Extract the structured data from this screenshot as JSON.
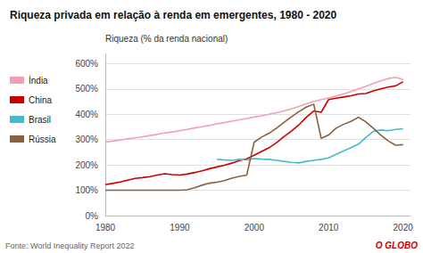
{
  "chart_data": {
    "type": "line",
    "title": "Riqueza privada em relação à renda em emergentes, 1980 - 2020",
    "ylabel": "Riqueza (% da renda nacional)",
    "annotations": [
      "Fonte: World Inequality Report 2022",
      "O GLOBO"
    ],
    "xlim": [
      1980,
      2021
    ],
    "xticks": [
      1980,
      1990,
      2000,
      2010,
      2020
    ],
    "ylim": [
      0,
      640
    ],
    "yticks": [
      {
        "value": 0,
        "label": "0%"
      },
      {
        "value": 100,
        "label": "100%"
      },
      {
        "value": 200,
        "label": "200%"
      },
      {
        "value": 300,
        "label": "300%"
      },
      {
        "value": 400,
        "label": "400%"
      },
      {
        "value": 500,
        "label": "500%"
      },
      {
        "value": 600,
        "label": "600%"
      }
    ],
    "grid": true,
    "legend": "left",
    "series": [
      {
        "name": "Índia",
        "color": "#f0a0b0",
        "x": [
          1980,
          1981,
          1982,
          1983,
          1984,
          1985,
          1986,
          1987,
          1988,
          1989,
          1990,
          1991,
          1992,
          1993,
          1994,
          1995,
          1996,
          1997,
          1998,
          1999,
          2000,
          2001,
          2002,
          2003,
          2004,
          2005,
          2006,
          2007,
          2008,
          2009,
          2010,
          2011,
          2012,
          2013,
          2014,
          2015,
          2016,
          2017,
          2018,
          2019,
          2020
        ],
        "values": [
          290,
          294,
          298,
          303,
          307,
          311,
          316,
          321,
          326,
          330,
          335,
          340,
          346,
          351,
          356,
          362,
          367,
          373,
          378,
          383,
          389,
          394,
          400,
          406,
          413,
          421,
          431,
          441,
          450,
          458,
          464,
          472,
          480,
          490,
          500,
          510,
          521,
          532,
          541,
          546,
          537
        ]
      },
      {
        "name": "China",
        "color": "#cc0000",
        "x": [
          1980,
          1981,
          1982,
          1983,
          1984,
          1985,
          1986,
          1987,
          1988,
          1989,
          1990,
          1991,
          1992,
          1993,
          1994,
          1995,
          1996,
          1997,
          1998,
          1999,
          2000,
          2001,
          2002,
          2003,
          2004,
          2005,
          2006,
          2007,
          2008,
          2009,
          2010,
          2011,
          2012,
          2013,
          2014,
          2015,
          2016,
          2017,
          2018,
          2019,
          2020
        ],
        "values": [
          122,
          127,
          133,
          140,
          147,
          150,
          154,
          160,
          165,
          162,
          160,
          164,
          170,
          177,
          185,
          192,
          199,
          207,
          217,
          224,
          238,
          253,
          268,
          288,
          312,
          334,
          358,
          388,
          413,
          408,
          458,
          463,
          468,
          473,
          480,
          482,
          492,
          500,
          507,
          512,
          528
        ]
      },
      {
        "name": "Brasil",
        "color": "#44bbcc",
        "x": [
          1995,
          1996,
          1997,
          1998,
          1999,
          2000,
          2001,
          2002,
          2003,
          2004,
          2005,
          2006,
          2007,
          2008,
          2009,
          2010,
          2011,
          2012,
          2013,
          2014,
          2015,
          2016,
          2017,
          2018,
          2019,
          2020
        ],
        "values": [
          222,
          220,
          218,
          222,
          220,
          225,
          223,
          222,
          218,
          214,
          210,
          208,
          214,
          218,
          222,
          228,
          242,
          255,
          268,
          282,
          308,
          332,
          338,
          335,
          340,
          343
        ]
      },
      {
        "name": "Rússia",
        "color": "#8b6040",
        "x": [
          1980,
          1981,
          1982,
          1983,
          1984,
          1985,
          1986,
          1987,
          1988,
          1989,
          1990,
          1991,
          1992,
          1993,
          1994,
          1995,
          1996,
          1997,
          1998,
          1999,
          2000,
          2001,
          2002,
          2003,
          2004,
          2005,
          2006,
          2007,
          2008,
          2009,
          2010,
          2011,
          2012,
          2013,
          2014,
          2015,
          2016,
          2017,
          2018,
          2019,
          2020
        ],
        "values": [
          100,
          100,
          100,
          100,
          100,
          100,
          100,
          100,
          100,
          100,
          100,
          102,
          110,
          120,
          128,
          132,
          138,
          148,
          155,
          160,
          290,
          310,
          325,
          345,
          368,
          390,
          410,
          428,
          440,
          305,
          318,
          345,
          360,
          372,
          388,
          370,
          345,
          318,
          295,
          278,
          280
        ]
      }
    ]
  }
}
